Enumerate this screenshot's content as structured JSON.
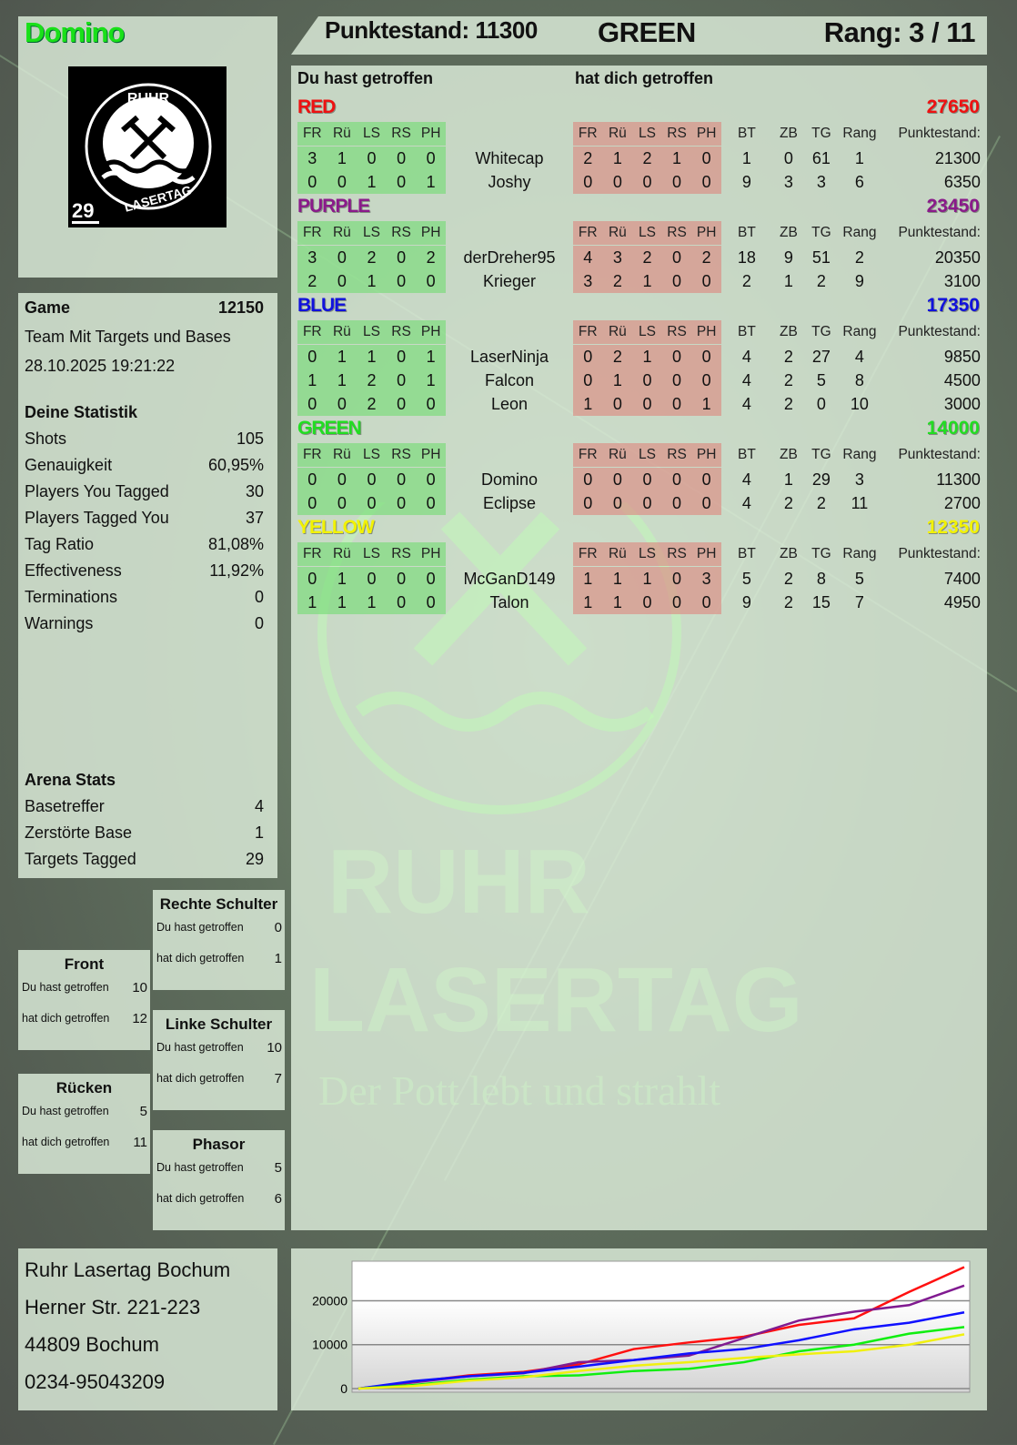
{
  "player": {
    "name": "Domino",
    "logo_number": "29",
    "logo_text_top": "RUHR",
    "logo_text_bottom": "LASERTAG"
  },
  "header": {
    "score": "Punktestand: 11300",
    "team": "GREEN",
    "rank": "Rang: 3 / 11"
  },
  "game": {
    "label": "Game",
    "id": "12150",
    "mode": "Team Mit Targets und Bases",
    "datetime": "28.10.2025 19:21:22"
  },
  "stats": {
    "title": "Deine Statistik",
    "items": [
      {
        "label": "Shots",
        "value": "105"
      },
      {
        "label": "Genauigkeit",
        "value": "60,95%"
      },
      {
        "label": "Players You Tagged",
        "value": "30"
      },
      {
        "label": "Players Tagged You",
        "value": "37"
      },
      {
        "label": "Tag Ratio",
        "value": "81,08%"
      },
      {
        "label": "Effectiveness",
        "value": "11,92%"
      },
      {
        "label": "Terminations",
        "value": "0"
      },
      {
        "label": "Warnings",
        "value": "0"
      }
    ]
  },
  "arena": {
    "title": "Arena Stats",
    "items": [
      {
        "label": "Basetreffer",
        "value": "4"
      },
      {
        "label": "Zerstörte Base",
        "value": "1"
      },
      {
        "label": "Targets Tagged",
        "value": "29"
      }
    ]
  },
  "zones": {
    "you_hit_label": "Du hast getroffen",
    "hit_you_label": "hat dich getroffen",
    "items": [
      {
        "name": "Rechte Schulter",
        "you_hit": "0",
        "hit_you": "1"
      },
      {
        "name": "Front",
        "you_hit": "10",
        "hit_you": "12"
      },
      {
        "name": "Linke Schulter",
        "you_hit": "10",
        "hit_you": "7"
      },
      {
        "name": "Rücken",
        "you_hit": "5",
        "hit_you": "11"
      },
      {
        "name": "Phasor",
        "you_hit": "5",
        "hit_you": "6"
      }
    ]
  },
  "table": {
    "you_hit_title": "Du hast getroffen",
    "hit_you_title": "hat dich getroffen",
    "columns": [
      "FR",
      "Rü",
      "LS",
      "RS",
      "PH",
      "FR",
      "Rü",
      "LS",
      "RS",
      "PH",
      "BT",
      "ZB",
      "TG",
      "Rang",
      "Punktestand:"
    ],
    "teams": [
      {
        "name": "RED",
        "color": "#ee1111",
        "total": "27650",
        "players": [
          {
            "name": "Whitecap",
            "you_hit": [
              "3",
              "1",
              "0",
              "0",
              "0"
            ],
            "hit_you": [
              "2",
              "1",
              "2",
              "1",
              "0"
            ],
            "bt": "1",
            "zb": "0",
            "tg": "61",
            "rang": "1",
            "score": "21300"
          },
          {
            "name": "Joshy",
            "you_hit": [
              "0",
              "0",
              "1",
              "0",
              "1"
            ],
            "hit_you": [
              "0",
              "0",
              "0",
              "0",
              "0"
            ],
            "bt": "9",
            "zb": "3",
            "tg": "3",
            "rang": "6",
            "score": "6350"
          }
        ]
      },
      {
        "name": "PURPLE",
        "color": "#8a1a8a",
        "total": "23450",
        "players": [
          {
            "name": "derDreher95",
            "you_hit": [
              "3",
              "0",
              "2",
              "0",
              "2"
            ],
            "hit_you": [
              "4",
              "3",
              "2",
              "0",
              "2"
            ],
            "bt": "18",
            "zb": "9",
            "tg": "51",
            "rang": "2",
            "score": "20350"
          },
          {
            "name": "Krieger",
            "you_hit": [
              "2",
              "0",
              "1",
              "0",
              "0"
            ],
            "hit_you": [
              "3",
              "2",
              "1",
              "0",
              "0"
            ],
            "bt": "2",
            "zb": "1",
            "tg": "2",
            "rang": "9",
            "score": "3100"
          }
        ]
      },
      {
        "name": "BLUE",
        "color": "#1111dd",
        "total": "17350",
        "players": [
          {
            "name": "LaserNinja",
            "you_hit": [
              "0",
              "1",
              "1",
              "0",
              "1"
            ],
            "hit_you": [
              "0",
              "2",
              "1",
              "0",
              "0"
            ],
            "bt": "4",
            "zb": "2",
            "tg": "27",
            "rang": "4",
            "score": "9850"
          },
          {
            "name": "Falcon",
            "you_hit": [
              "1",
              "1",
              "2",
              "0",
              "1"
            ],
            "hit_you": [
              "0",
              "1",
              "0",
              "0",
              "0"
            ],
            "bt": "4",
            "zb": "2",
            "tg": "5",
            "rang": "8",
            "score": "4500"
          },
          {
            "name": "Leon",
            "you_hit": [
              "0",
              "0",
              "2",
              "0",
              "0"
            ],
            "hit_you": [
              "1",
              "0",
              "0",
              "0",
              "1"
            ],
            "bt": "4",
            "zb": "2",
            "tg": "0",
            "rang": "10",
            "score": "3000"
          }
        ]
      },
      {
        "name": "GREEN",
        "color": "#22dd22",
        "total": "14000",
        "players": [
          {
            "name": "Domino",
            "you_hit": [
              "0",
              "0",
              "0",
              "0",
              "0"
            ],
            "hit_you": [
              "0",
              "0",
              "0",
              "0",
              "0"
            ],
            "bt": "4",
            "zb": "1",
            "tg": "29",
            "rang": "3",
            "score": "11300"
          },
          {
            "name": "Eclipse",
            "you_hit": [
              "0",
              "0",
              "0",
              "0",
              "0"
            ],
            "hit_you": [
              "0",
              "0",
              "0",
              "0",
              "0"
            ],
            "bt": "4",
            "zb": "2",
            "tg": "2",
            "rang": "11",
            "score": "2700"
          }
        ]
      },
      {
        "name": "YELLOW",
        "color": "#f2f200",
        "total": "12350",
        "players": [
          {
            "name": "McGanD149",
            "you_hit": [
              "0",
              "1",
              "0",
              "0",
              "0"
            ],
            "hit_you": [
              "1",
              "1",
              "1",
              "0",
              "3"
            ],
            "bt": "5",
            "zb": "2",
            "tg": "8",
            "rang": "5",
            "score": "7400"
          },
          {
            "name": "Talon",
            "you_hit": [
              "1",
              "1",
              "1",
              "0",
              "0"
            ],
            "hit_you": [
              "1",
              "1",
              "0",
              "0",
              "0"
            ],
            "bt": "9",
            "zb": "2",
            "tg": "15",
            "rang": "7",
            "score": "4950"
          }
        ]
      }
    ]
  },
  "address": {
    "lines": [
      "Ruhr Lasertag Bochum",
      "Herner Str. 221-223",
      "44809 Bochum",
      "0234-95043209"
    ]
  },
  "watermark": {
    "line1": "RUHR",
    "line2": "LASERTAG",
    "slogan": "Der Pott lebt und strahlt"
  },
  "chart_data": {
    "type": "line",
    "title": "",
    "xlabel": "",
    "ylabel": "",
    "ylim": [
      0,
      29000
    ],
    "yticks": [
      0,
      10000,
      20000
    ],
    "grid": true,
    "x": [
      0,
      1,
      2,
      3,
      4,
      5,
      6,
      7,
      8,
      9,
      10,
      11
    ],
    "series": [
      {
        "color": "#ff1010",
        "values": [
          0,
          1500,
          3000,
          3800,
          5500,
          9000,
          10500,
          11800,
          14500,
          16000,
          22000,
          27650
        ]
      },
      {
        "color": "#801a90",
        "values": [
          0,
          1400,
          2800,
          3500,
          6000,
          6500,
          7500,
          11500,
          15500,
          17500,
          19000,
          23450
        ]
      },
      {
        "color": "#1010ff",
        "values": [
          0,
          1700,
          2800,
          3600,
          5000,
          6500,
          8000,
          9000,
          11000,
          13500,
          15000,
          17350
        ]
      },
      {
        "color": "#10ee10",
        "values": [
          0,
          800,
          2000,
          2800,
          3000,
          4000,
          4500,
          6000,
          8500,
          10000,
          12500,
          14000
        ]
      },
      {
        "color": "#f0f010",
        "values": [
          0,
          600,
          1800,
          2600,
          4000,
          5200,
          6000,
          7000,
          7800,
          8500,
          10000,
          12350
        ]
      }
    ]
  }
}
